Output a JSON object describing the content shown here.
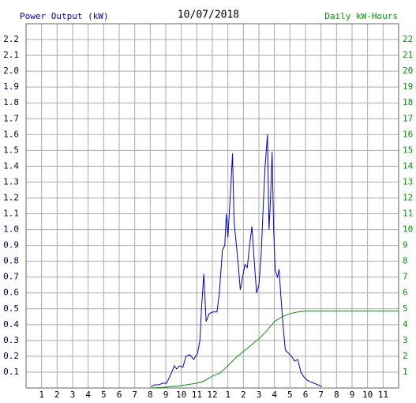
{
  "chart_data": {
    "type": "line",
    "title": "10/07/2018",
    "y_label": "Power Output (kW)",
    "y2_label": "Daily kW-Hours",
    "xlim": [
      0,
      24
    ],
    "xticks": [
      1,
      2,
      3,
      4,
      5,
      6,
      7,
      8,
      9,
      10,
      11,
      12,
      {
        "value": 13,
        "label": "1"
      },
      {
        "value": 14,
        "label": "2"
      },
      {
        "value": 15,
        "label": "3"
      },
      {
        "value": 16,
        "label": "4"
      },
      {
        "value": 17,
        "label": "5"
      },
      {
        "value": 18,
        "label": "6"
      },
      {
        "value": 19,
        "label": "7"
      },
      {
        "value": 20,
        "label": "8"
      },
      {
        "value": 21,
        "label": "9"
      },
      {
        "value": 22,
        "label": "10"
      },
      {
        "value": 23,
        "label": "11"
      }
    ],
    "ylim": [
      0,
      2.3
    ],
    "yticks": [
      0.1,
      0.2,
      0.3,
      0.4,
      0.5,
      0.6,
      0.7,
      0.8,
      0.9,
      {
        "value": 1,
        "label": "1.0"
      },
      1.1,
      1.2,
      1.3,
      1.4,
      1.5,
      1.6,
      1.7,
      1.8,
      1.9,
      {
        "value": 2,
        "label": "2.0"
      },
      2.1,
      2.2
    ],
    "y2lim": [
      0,
      23
    ],
    "y2ticks": [
      1,
      2,
      3,
      4,
      5,
      6,
      7,
      8,
      9,
      10,
      11,
      12,
      13,
      14,
      15,
      16,
      17,
      18,
      19,
      20,
      21,
      22
    ],
    "grid": true,
    "series": [
      {
        "color": "#0000cc",
        "x": [
          8.05,
          8.3,
          8.55,
          8.8,
          9.05,
          9.3,
          9.55,
          9.7,
          9.9,
          10.1,
          10.3,
          10.55,
          10.8,
          11.05,
          11.2,
          11.3,
          11.45,
          11.6,
          11.8,
          12.05,
          12.3,
          12.45,
          12.65,
          12.8,
          12.9,
          13.0,
          13.15,
          13.3,
          13.4,
          13.55,
          13.65,
          13.8,
          13.95,
          14.1,
          14.25,
          14.4,
          14.55,
          14.7,
          14.85,
          15.0,
          15.15,
          15.3,
          15.4,
          15.55,
          15.65,
          15.75,
          15.85,
          15.95,
          16.05,
          16.2,
          16.3,
          16.4,
          16.55,
          16.7,
          16.9,
          17.1,
          17.3,
          17.5,
          17.7,
          17.9,
          18.1,
          18.3,
          18.55,
          18.8,
          19.05
        ],
        "values": [
          0.01,
          0.02,
          0.02,
          0.03,
          0.03,
          0.08,
          0.14,
          0.12,
          0.14,
          0.13,
          0.2,
          0.21,
          0.18,
          0.22,
          0.3,
          0.5,
          0.72,
          0.42,
          0.47,
          0.48,
          0.48,
          0.6,
          0.87,
          0.9,
          1.1,
          0.95,
          1.2,
          1.48,
          1.05,
          0.9,
          0.8,
          0.62,
          0.7,
          0.78,
          0.76,
          0.9,
          1.02,
          0.8,
          0.6,
          0.65,
          0.85,
          1.2,
          1.4,
          1.6,
          1.0,
          1.2,
          1.49,
          1.0,
          0.74,
          0.7,
          0.75,
          0.6,
          0.4,
          0.24,
          0.22,
          0.2,
          0.17,
          0.18,
          0.1,
          0.07,
          0.05,
          0.04,
          0.03,
          0.02,
          0.01
        ]
      },
      {
        "color": "#009900",
        "axis": "y2",
        "x": [
          8,
          9,
          10,
          11,
          11.5,
          12,
          12.5,
          13,
          13.5,
          14,
          14.5,
          15,
          15.5,
          16,
          16.5,
          17,
          17.5,
          18,
          24
        ],
        "values": [
          0,
          0.05,
          0.15,
          0.3,
          0.45,
          0.75,
          0.95,
          1.4,
          1.9,
          2.3,
          2.7,
          3.1,
          3.6,
          4.2,
          4.5,
          4.7,
          4.8,
          4.85,
          4.85
        ]
      }
    ]
  }
}
